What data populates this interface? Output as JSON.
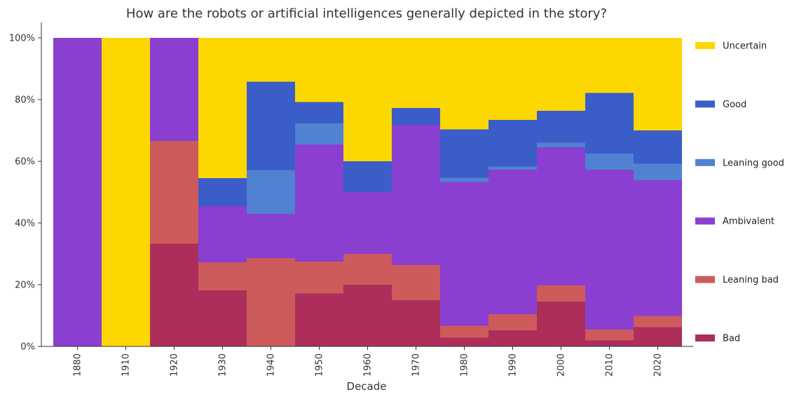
{
  "chart_data": {
    "type": "bar",
    "stacked": true,
    "normalized": true,
    "title": "How are the robots or artificial intelligences generally depicted in the story?",
    "xlabel": "Decade",
    "ylabel": "",
    "categories": [
      "1880",
      "1910",
      "1920",
      "1930",
      "1940",
      "1950",
      "1960",
      "1970",
      "1980",
      "1990",
      "2000",
      "2010",
      "2020"
    ],
    "ylim": [
      0,
      100
    ],
    "yticks": [
      "0%",
      "20%",
      "40%",
      "60%",
      "80%",
      "100%"
    ],
    "legend_position": "right",
    "grid": false,
    "series": [
      {
        "name": "Bad",
        "color": "#ad2e5b",
        "values": [
          0,
          0,
          33.3,
          18.2,
          0,
          17.2,
          20,
          15,
          2.8,
          5.2,
          14.6,
          1.9,
          6.3
        ]
      },
      {
        "name": "Leaning bad",
        "color": "#cd5b5b",
        "values": [
          0,
          0,
          33.3,
          9.1,
          28.6,
          10.3,
          10,
          11.4,
          3.9,
          5.2,
          5.2,
          3.5,
          3.6
        ]
      },
      {
        "name": "Ambivalent",
        "color": "#8a3fd1",
        "values": [
          100,
          0,
          33.4,
          18.2,
          14.3,
          37.9,
          20,
          45.4,
          46.6,
          46.9,
          44.8,
          51.9,
          44
        ]
      },
      {
        "name": "Leaning good",
        "color": "#5181d1",
        "values": [
          0,
          0,
          0,
          0,
          14.3,
          6.9,
          0,
          0,
          1.4,
          1.0,
          1.4,
          5.2,
          5.3
        ]
      },
      {
        "name": "Good",
        "color": "#3a5dc8",
        "values": [
          0,
          0,
          0,
          9.1,
          28.6,
          6.9,
          10,
          5.5,
          15.6,
          15.1,
          10.4,
          19.7,
          10.8
        ]
      },
      {
        "name": "Uncertain",
        "color": "#fdd700",
        "values": [
          0,
          100,
          0,
          45.4,
          14.2,
          20.8,
          40,
          22.7,
          29.7,
          26.6,
          23.6,
          17.8,
          30
        ]
      }
    ]
  }
}
